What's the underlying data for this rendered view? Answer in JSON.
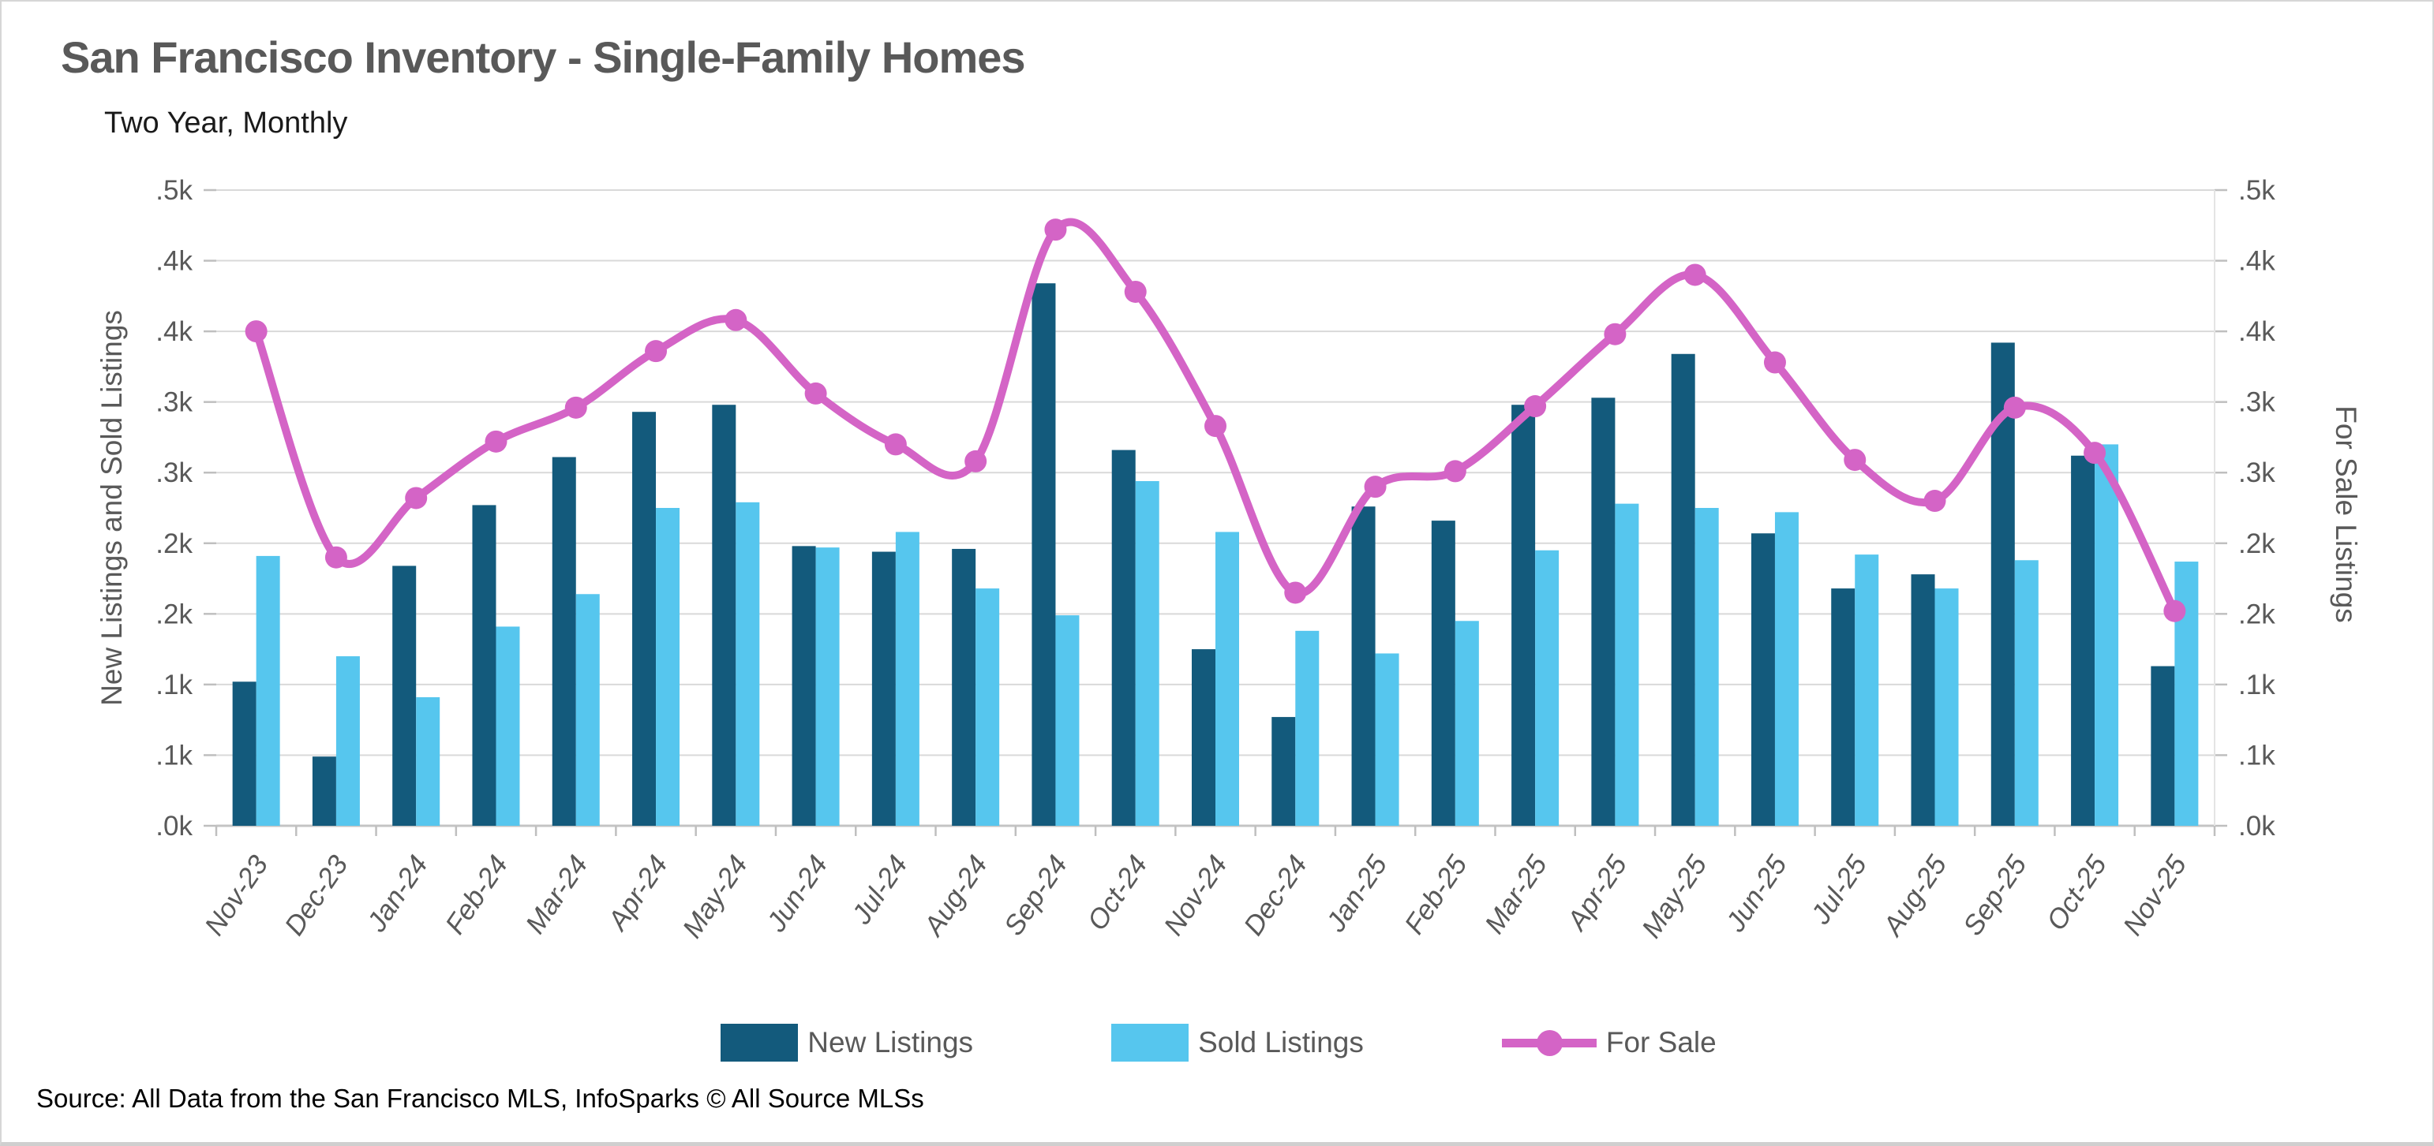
{
  "header": {
    "title": "San Francisco Inventory - Single-Family Homes",
    "subtitle": "Two Year, Monthly"
  },
  "source": "Source: All Data from the San Francisco MLS, InfoSparks © All Source MLSs",
  "legend": {
    "new_listings_label": "New Listings",
    "sold_listings_label": "Sold Listings",
    "for_sale_label": "For Sale"
  },
  "colors": {
    "new_listings": "#135A7C",
    "sold_listings": "#56C6EE",
    "for_sale": "#D464C6",
    "gridline": "#D9D9D9",
    "axis_line": "#C4C4C4",
    "tick": "#BFBFBF",
    "label_text": "#595959"
  },
  "chart_data": {
    "type": "bar+line",
    "title": "San Francisco Inventory - Single-Family Homes",
    "subtitle": "Two Year, Monthly",
    "categories": [
      "Nov-23",
      "Dec-23",
      "Jan-24",
      "Feb-24",
      "Mar-24",
      "Apr-24",
      "May-24",
      "Jun-24",
      "Jul-24",
      "Aug-24",
      "Sep-24",
      "Oct-24",
      "Nov-24",
      "Dec-24",
      "Jan-25",
      "Feb-25",
      "Mar-25",
      "Apr-25",
      "May-25",
      "Jun-25",
      "Jul-25",
      "Aug-25",
      "Sep-25",
      "Oct-25",
      "Nov-25"
    ],
    "series": [
      {
        "name": "New Listings",
        "type": "bar",
        "axis": "left",
        "values": [
          102,
          49,
          184,
          227,
          261,
          293,
          298,
          198,
          194,
          196,
          384,
          266,
          125,
          77,
          226,
          216,
          298,
          303,
          334,
          207,
          168,
          178,
          342,
          262,
          113
        ]
      },
      {
        "name": "Sold Listings",
        "type": "bar",
        "axis": "left",
        "values": [
          191,
          120,
          91,
          141,
          164,
          225,
          229,
          197,
          208,
          168,
          149,
          244,
          208,
          138,
          122,
          145,
          195,
          228,
          225,
          222,
          192,
          168,
          188,
          270,
          187
        ]
      },
      {
        "name": "For Sale",
        "type": "line",
        "axis": "right",
        "values": [
          350,
          190,
          232,
          272,
          296,
          336,
          358,
          306,
          270,
          258,
          422,
          378,
          283,
          165,
          240,
          251,
          297,
          348,
          390,
          328,
          259,
          230,
          296,
          264,
          152
        ]
      }
    ],
    "ylabel_left": "New Listings and Sold Listings",
    "ylabel_right": "For Sale Listings",
    "ylim": [
      0,
      450
    ],
    "y_tick_step": 50,
    "y_tick_labels_bottom_to_top": [
      ".0k",
      ".1k",
      ".1k",
      ".2k",
      ".2k",
      ".3k",
      ".3k",
      ".4k",
      ".4k",
      ".5k"
    ],
    "grid": "horizontal-only",
    "legend_position": "bottom"
  }
}
